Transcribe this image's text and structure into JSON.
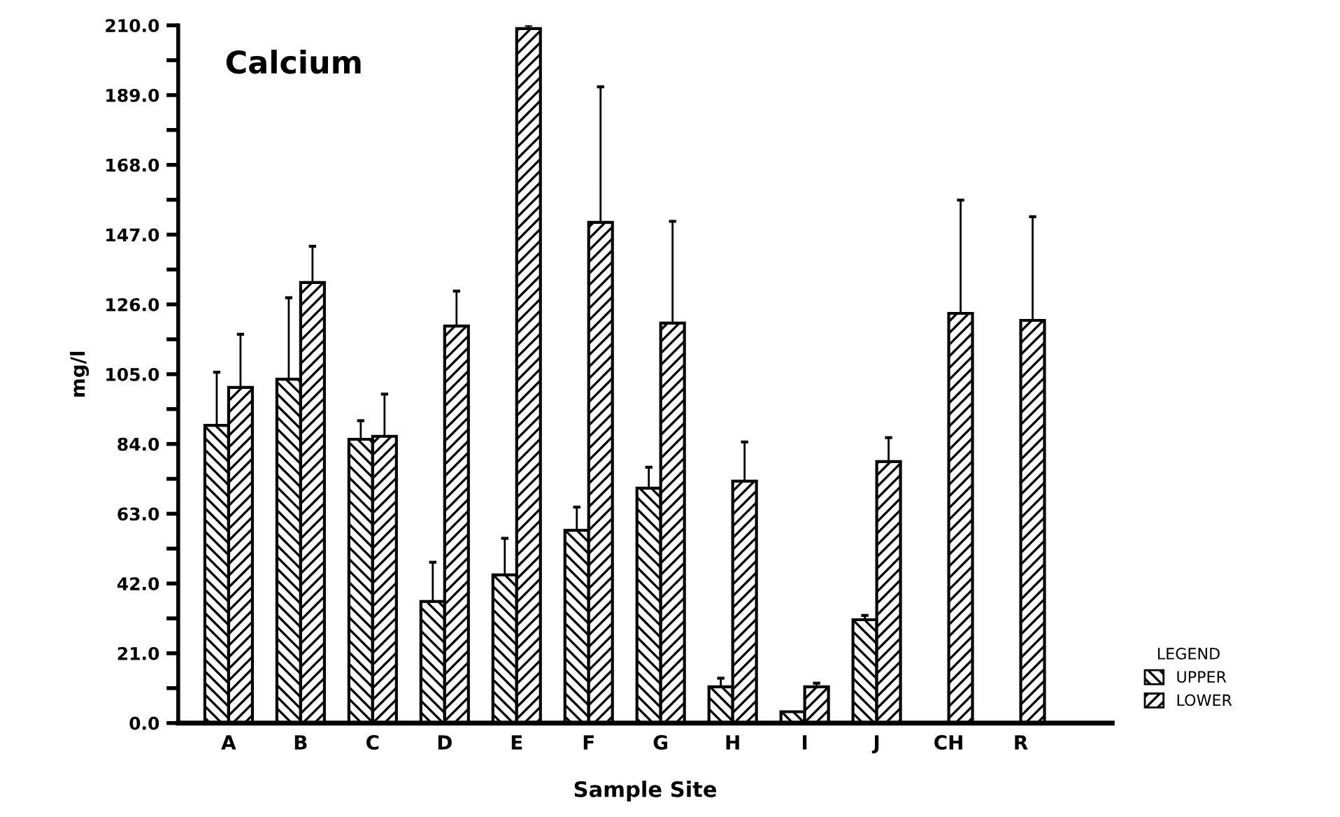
{
  "chart_data": {
    "type": "bar",
    "title": "Calcium",
    "xlabel": "Sample Site",
    "ylabel": "mg/l",
    "legend_title": "LEGEND",
    "categories": [
      "A",
      "B",
      "C",
      "D",
      "E",
      "F",
      "G",
      "H",
      "I",
      "J",
      "CH",
      "R"
    ],
    "series": [
      {
        "name": "UPPER",
        "color": "#000000",
        "values": [
          89.6,
          103.5,
          85.4,
          36.6,
          44.6,
          58,
          70.7,
          10.9,
          3.4,
          31.1,
          null,
          null
        ],
        "errors": [
          [
            89.6,
            105.6
          ],
          [
            103.5,
            128
          ],
          [
            85.4,
            91
          ],
          [
            36.6,
            48.4
          ],
          [
            44.6,
            55.6
          ],
          [
            58,
            65
          ],
          [
            70.7,
            77
          ],
          [
            10.9,
            13.5
          ],
          null,
          [
            31.1,
            32.4
          ],
          null,
          null
        ]
      },
      {
        "name": "LOWER",
        "color": "#000000",
        "values": [
          101,
          132.6,
          86.3,
          119.5,
          209,
          150.7,
          120.4,
          72.8,
          10.9,
          78.7,
          123.3,
          121.2
        ],
        "errors": [
          [
            101,
            117
          ],
          [
            132.6,
            143.5
          ],
          [
            86.3,
            99
          ],
          [
            119.5,
            130
          ],
          [
            209,
            210
          ],
          [
            150.7,
            191.5
          ],
          [
            120.4,
            151
          ],
          [
            72.8,
            84.6
          ],
          [
            10.9,
            12
          ],
          [
            78.7,
            85.9
          ],
          [
            123.3,
            157.4
          ],
          [
            121.2,
            152.4
          ]
        ]
      }
    ],
    "ylim": [
      0,
      210
    ],
    "yticks": [
      {
        "value": 0,
        "label": "0.0"
      },
      {
        "value": 21,
        "label": "21.0"
      },
      {
        "value": 42,
        "label": "42.0"
      },
      {
        "value": 63,
        "label": "63.0"
      },
      {
        "value": 84,
        "label": "84.0"
      },
      {
        "value": 105,
        "label": "105.0"
      },
      {
        "value": 126,
        "label": "126.0"
      },
      {
        "value": 147,
        "label": "147.0"
      },
      {
        "value": 168,
        "label": "168.0"
      },
      {
        "value": 189,
        "label": "189.0"
      },
      {
        "value": 210,
        "label": "210.0"
      }
    ],
    "grid": false,
    "legend": "right"
  }
}
